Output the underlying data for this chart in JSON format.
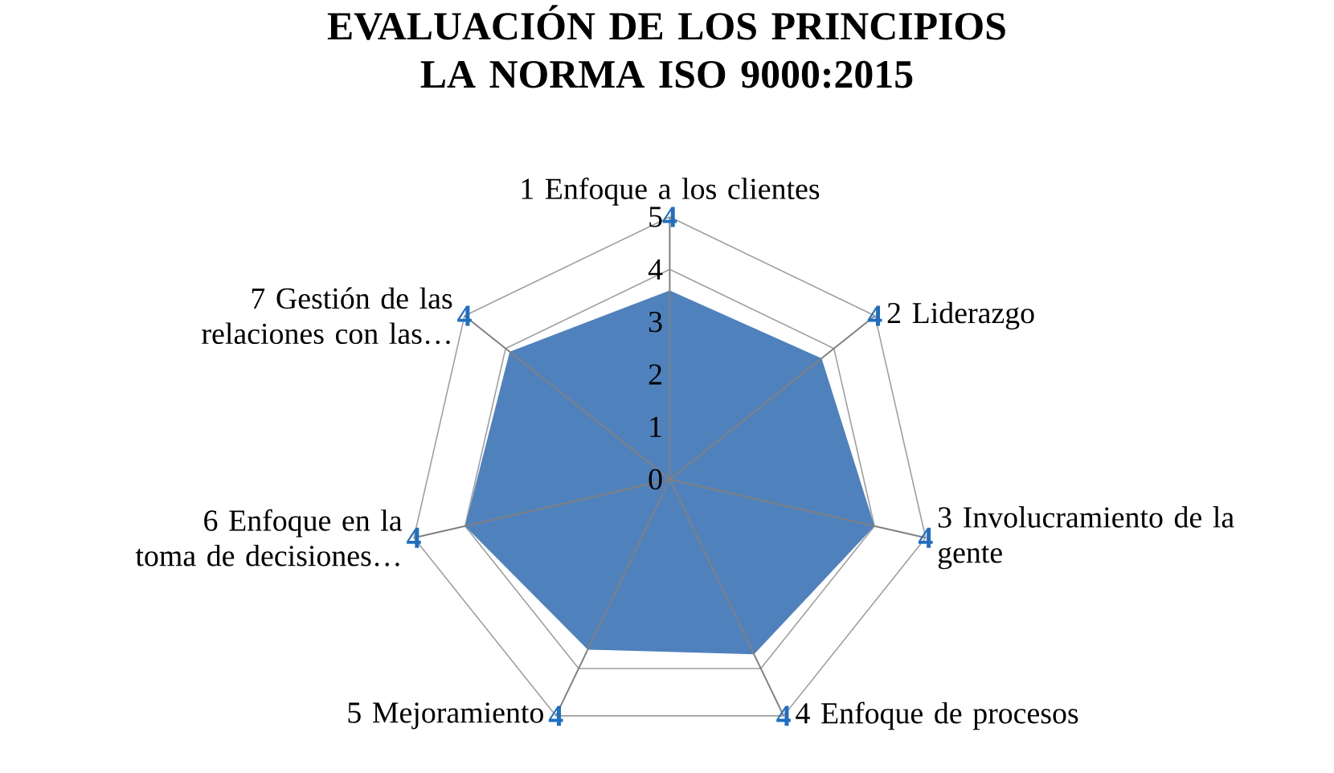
{
  "chart_data": {
    "type": "radar",
    "title": "EVALUACIÓN DE LOS PRINCIPIOS LA NORMA ISO 9000:2015",
    "categories": [
      "1 Enfoque a los clientes",
      "2 Liderazgo",
      "3 Involucramiento de la gente",
      "4 Enfoque de procesos",
      "5 Mejoramiento",
      "6 Enfoque en la toma de decisiones…",
      "7 Gestión de las relaciones con las…"
    ],
    "series": [
      {
        "color": "#4f81bd",
        "values": [
          3.6,
          3.7,
          4.0,
          3.7,
          3.6,
          4.0,
          3.9
        ],
        "value_labels": [
          "4",
          "4",
          "4",
          "4",
          "4",
          "4",
          "4"
        ]
      }
    ],
    "ylim": [
      0,
      5
    ],
    "yticks": [
      0,
      1,
      2,
      3,
      4,
      5
    ],
    "grid": true
  }
}
